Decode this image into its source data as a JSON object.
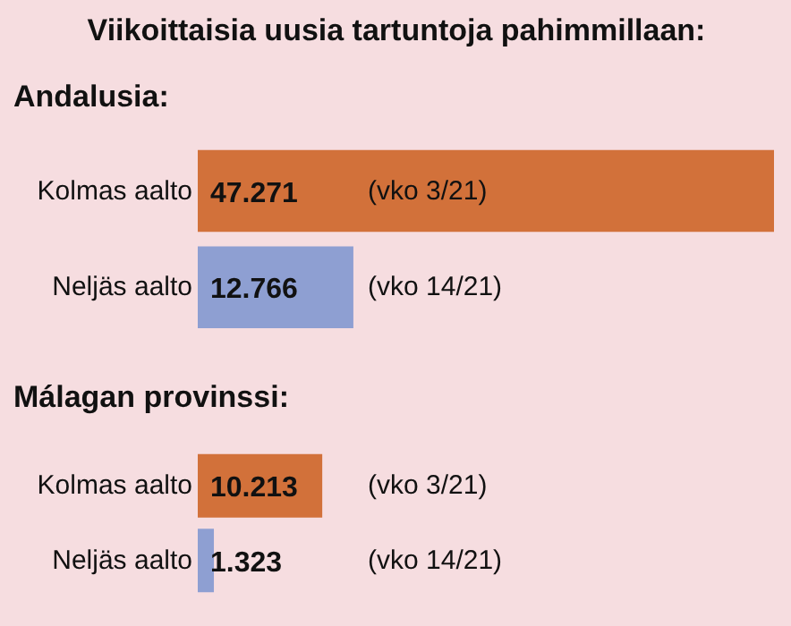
{
  "chart_data": [
    {
      "type": "bar",
      "orientation": "horizontal",
      "title": "Viikoittaisia uusia tartuntoja pahimmillaan:",
      "subtitle": "Andalusia:",
      "categories": [
        "Kolmas aalto",
        "Neljäs aalto"
      ],
      "values": [
        47271,
        12766
      ],
      "colors": [
        "#d2713a",
        "#8e9fd2"
      ],
      "value_labels": [
        "47.271",
        "12.766"
      ],
      "annotations": [
        "(vko 3/21)",
        "(vko 14/21)"
      ]
    },
    {
      "type": "bar",
      "orientation": "horizontal",
      "title": "Málagan provinssi:",
      "categories": [
        "Kolmas aalto",
        "Neljäs aalto"
      ],
      "values": [
        10213,
        1323
      ],
      "colors": [
        "#d2713a",
        "#8e9fd2"
      ],
      "value_labels": [
        "10.213",
        "1.323"
      ],
      "annotations": [
        "(vko 3/21)",
        "(vko 14/21)"
      ]
    }
  ]
}
